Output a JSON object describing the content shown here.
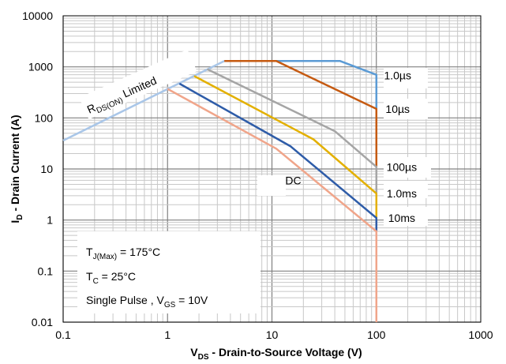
{
  "chart_data": {
    "type": "line",
    "xscale": "log",
    "yscale": "log",
    "xlim": [
      0.1,
      1000
    ],
    "ylim": [
      0.01,
      10000
    ],
    "grid": true,
    "xlabel": {
      "main": "V",
      "sub": "DS",
      "rest": " - Drain-to-Source Voltage (V)"
    },
    "ylabel": {
      "main": "I",
      "sub": "D",
      "rest": " - Drain Current (A)"
    },
    "x_ticks": [
      "0.1",
      "1",
      "10",
      "100",
      "1000"
    ],
    "y_ticks": [
      "0.01",
      "0.1",
      "1",
      "10",
      "100",
      "1000",
      "10000"
    ],
    "limit_line": {
      "label_main": "R",
      "label_sub": "DS(ON)",
      "label_rest": " Limited",
      "color": "#a9c6e8",
      "points": [
        [
          0.1,
          36
        ],
        [
          3.5,
          1300
        ]
      ]
    },
    "series": [
      {
        "name": "1.0µs",
        "color": "#5b9bd5",
        "points": [
          [
            3.5,
            1300
          ],
          [
            45,
            1300
          ],
          [
            100,
            700
          ],
          [
            100,
            150
          ]
        ]
      },
      {
        "name": "10µs",
        "color": "#c55a11",
        "points": [
          [
            3.5,
            1300
          ],
          [
            11,
            1300
          ],
          [
            100,
            150
          ],
          [
            100,
            11
          ]
        ]
      },
      {
        "name": "100µs",
        "color": "#a5a5a5",
        "points": [
          [
            2.4,
            900
          ],
          [
            40,
            55
          ],
          [
            100,
            11
          ],
          [
            100,
            3.3
          ]
        ]
      },
      {
        "name": "1.0ms",
        "color": "#e3b000",
        "points": [
          [
            1.8,
            660
          ],
          [
            25,
            38
          ],
          [
            100,
            3.3
          ],
          [
            100,
            1.1
          ]
        ]
      },
      {
        "name": "10ms",
        "color": "#2e5ca8",
        "points": [
          [
            1.3,
            470
          ],
          [
            15,
            28
          ],
          [
            100,
            1.1
          ],
          [
            100,
            0.6
          ]
        ]
      },
      {
        "name": "DC",
        "color": "#f0a58a",
        "points": [
          [
            1.0,
            370
          ],
          [
            11,
            25
          ],
          [
            100,
            0.6
          ],
          [
            100,
            0.01
          ]
        ]
      }
    ],
    "curve_labels": [
      {
        "text": "1.0µs",
        "x": 160,
        "y": 680
      },
      {
        "text": "10µs",
        "x": 160,
        "y": 150
      },
      {
        "text": "100µs",
        "x": 175,
        "y": 11
      },
      {
        "text": "1.0ms",
        "x": 175,
        "y": 3.3
      },
      {
        "text": "10ms",
        "x": 175,
        "y": 1.1
      },
      {
        "text": "DC",
        "x": 16,
        "y": 6.0
      }
    ],
    "conditions": {
      "line1": {
        "main": "T",
        "sub": "J(Max)",
        "rest": " = 175°C"
      },
      "line2": {
        "main": "T",
        "sub": "C",
        "rest": " = 25°C"
      },
      "line3": {
        "main": "Single Pulse , V",
        "sub": "GS",
        "rest": " = 10V"
      }
    }
  }
}
